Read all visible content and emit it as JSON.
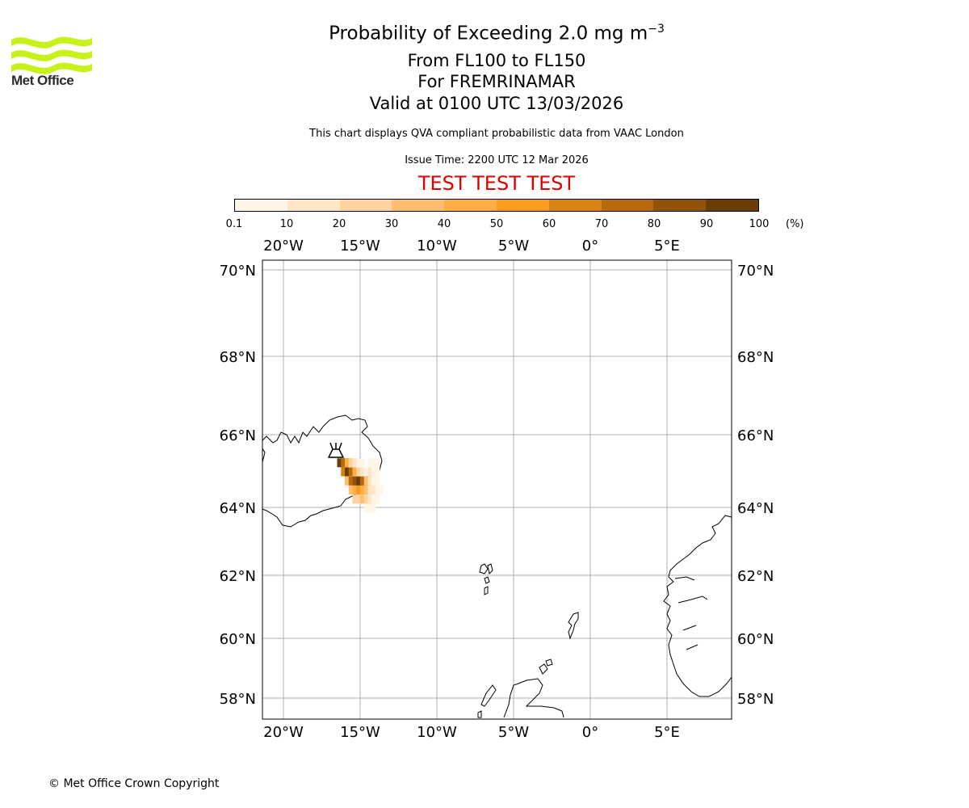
{
  "header": {
    "logo_text": "Met Office",
    "title_prefix": "Probability of Exceeding 2.0 mg m",
    "title_exponent": "−3",
    "flight_levels": "From FL100 to FL150",
    "volcano_line": "For FREMRINAMAR",
    "valid_line": "Valid at 0100 UTC 13/03/2026",
    "note": "This chart displays QVA compliant probabilistic data from VAAC London",
    "issue_time": "Issue Time: 2200 UTC 12 Mar 2026",
    "test_banner": "TEST TEST TEST"
  },
  "colorbar": {
    "unit": "(%)",
    "ticks": [
      "0.1",
      "10",
      "20",
      "30",
      "40",
      "50",
      "60",
      "70",
      "80",
      "90",
      "100"
    ],
    "colors": [
      "#fff5e6",
      "#fee5c5",
      "#fdd49e",
      "#fdbf6f",
      "#fdae45",
      "#f99c1c",
      "#d98410",
      "#b8690c",
      "#945208",
      "#6b3d05"
    ]
  },
  "map": {
    "lon_labels": [
      "20°W",
      "15°W",
      "10°W",
      "5°W",
      "0°",
      "5°E"
    ],
    "lon_values": [
      -20,
      -15,
      -10,
      -5,
      0,
      5
    ],
    "lat_labels": [
      "70°N",
      "68°N",
      "66°N",
      "64°N",
      "62°N",
      "60°N",
      "58°N"
    ],
    "lat_values": [
      70,
      68,
      66,
      64,
      62,
      60,
      58
    ],
    "volcano_symbol": "volcano-icon",
    "plume_cells": [
      {
        "lon": -16.5,
        "lat": 65.35,
        "pct": 95
      },
      {
        "lon": -16.25,
        "lat": 65.35,
        "pct": 70
      },
      {
        "lon": -16.0,
        "lat": 65.35,
        "pct": 45
      },
      {
        "lon": -15.75,
        "lat": 65.35,
        "pct": 25
      },
      {
        "lon": -15.5,
        "lat": 65.35,
        "pct": 15
      },
      {
        "lon": -15.25,
        "lat": 65.35,
        "pct": 8
      },
      {
        "lon": -14.5,
        "lat": 65.35,
        "pct": 5
      },
      {
        "lon": -14.25,
        "lat": 65.35,
        "pct": 8
      },
      {
        "lon": -16.25,
        "lat": 65.1,
        "pct": 60
      },
      {
        "lon": -16.0,
        "lat": 65.1,
        "pct": 95
      },
      {
        "lon": -15.75,
        "lat": 65.1,
        "pct": 75
      },
      {
        "lon": -15.5,
        "lat": 65.1,
        "pct": 45
      },
      {
        "lon": -15.25,
        "lat": 65.1,
        "pct": 25
      },
      {
        "lon": -15.0,
        "lat": 65.1,
        "pct": 12
      },
      {
        "lon": -14.75,
        "lat": 65.1,
        "pct": 8
      },
      {
        "lon": -14.5,
        "lat": 65.1,
        "pct": 15
      },
      {
        "lon": -14.25,
        "lat": 65.1,
        "pct": 8
      },
      {
        "lon": -16.0,
        "lat": 64.85,
        "pct": 35
      },
      {
        "lon": -15.75,
        "lat": 64.85,
        "pct": 75
      },
      {
        "lon": -15.5,
        "lat": 64.85,
        "pct": 85
      },
      {
        "lon": -15.25,
        "lat": 64.85,
        "pct": 95
      },
      {
        "lon": -15.0,
        "lat": 64.85,
        "pct": 70
      },
      {
        "lon": -14.75,
        "lat": 64.85,
        "pct": 30
      },
      {
        "lon": -14.5,
        "lat": 64.85,
        "pct": 12
      },
      {
        "lon": -14.25,
        "lat": 64.85,
        "pct": 5
      },
      {
        "lon": -15.75,
        "lat": 64.6,
        "pct": 35
      },
      {
        "lon": -15.5,
        "lat": 64.6,
        "pct": 45
      },
      {
        "lon": -15.25,
        "lat": 64.6,
        "pct": 55
      },
      {
        "lon": -15.0,
        "lat": 64.6,
        "pct": 45
      },
      {
        "lon": -14.75,
        "lat": 64.6,
        "pct": 30
      },
      {
        "lon": -14.5,
        "lat": 64.6,
        "pct": 18
      },
      {
        "lon": -14.25,
        "lat": 64.6,
        "pct": 10
      },
      {
        "lon": -14.0,
        "lat": 64.6,
        "pct": 6
      },
      {
        "lon": -15.5,
        "lat": 64.35,
        "pct": 20
      },
      {
        "lon": -15.25,
        "lat": 64.35,
        "pct": 25
      },
      {
        "lon": -15.0,
        "lat": 64.35,
        "pct": 30
      },
      {
        "lon": -14.75,
        "lat": 64.35,
        "pct": 25
      },
      {
        "lon": -14.5,
        "lat": 64.35,
        "pct": 15
      },
      {
        "lon": -14.25,
        "lat": 64.35,
        "pct": 8
      },
      {
        "lon": -14.75,
        "lat": 64.1,
        "pct": 8
      },
      {
        "lon": -14.5,
        "lat": 64.1,
        "pct": 6
      }
    ]
  },
  "footer": {
    "copyright": "© Met Office Crown Copyright"
  }
}
